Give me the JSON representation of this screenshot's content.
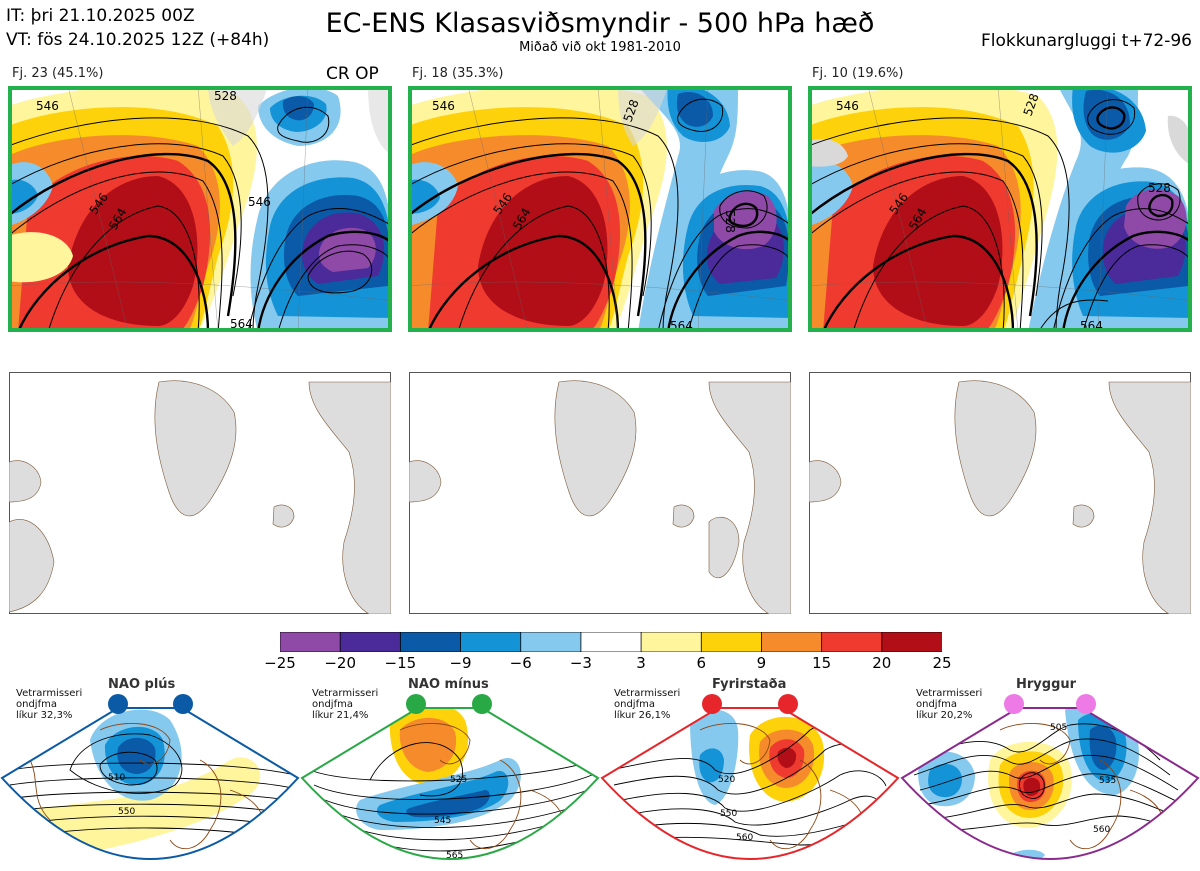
{
  "header": {
    "init_time": "IT: þri 21.10.2025 00Z",
    "valid_time": "VT: fös 24.10.2025 12Z  (+84h)",
    "title": "EC-ENS Klasasviðsmyndir - 500 hPa hæð",
    "subtitle": "Miðað við okt 1981-2010",
    "window": "Flokkunargluggi t+72-96"
  },
  "clusters": [
    {
      "label": "Fj. 23 (45.1%)",
      "tag": "CR OP",
      "border": "#22b14c",
      "contours": {
        "a": "546",
        "b": "546",
        "c": "564",
        "d": "564",
        "e": "528",
        "f": "546"
      }
    },
    {
      "label": "Fj. 18 (35.3%)",
      "tag": "",
      "border": "#22b14c",
      "contours": {
        "a": "546",
        "b": "546",
        "c": "564",
        "d": "564",
        "e": "528",
        "f": "528"
      }
    },
    {
      "label": "Fj. 10 (19.6%)",
      "tag": "",
      "border": "#22b14c",
      "contours": {
        "a": "546",
        "b": "546",
        "c": "564",
        "d": "564",
        "e": "528",
        "f": "528"
      }
    }
  ],
  "colorbar": {
    "colors": [
      "#8e4aa6",
      "#4b2a9a",
      "#0a5aa8",
      "#1493d7",
      "#86c9ee",
      "#ffffff",
      "#fff59d",
      "#fdd20a",
      "#f68b2c",
      "#ee3a2f",
      "#b10e18"
    ],
    "ticks": [
      "−25",
      "−20",
      "−15",
      "−9",
      "−6",
      "−3",
      "3",
      "6",
      "9",
      "15",
      "20",
      "25"
    ]
  },
  "regimes": [
    {
      "name": "NAO plús",
      "line1": "Vetrarmisseri",
      "line2": "ondjfma",
      "line3": "líkur 32,3%",
      "color": "#0b5aa5",
      "dot": "#0b5aa5",
      "c1": "510",
      "c2": "550"
    },
    {
      "name": "NAO mínus",
      "line1": "Vetrarmisseri",
      "line2": "ondjfma",
      "line3": "líkur 21,4%",
      "color": "#29a846",
      "dot": "#29a846",
      "c1": "525",
      "c2": "545",
      "c3": "565"
    },
    {
      "name": "Fyrirstaða",
      "line1": "Vetrarmisseri",
      "line2": "ondjfma",
      "line3": "líkur 26,1%",
      "color": "#e6262a",
      "dot": "#e6262a",
      "c1": "520",
      "c2": "550",
      "c3": "560"
    },
    {
      "name": "Hryggur",
      "line1": "Vetrarmisseri",
      "line2": "ondjfma",
      "line3": "líkur 20,2%",
      "color": "#8a2a8c",
      "dot": "#ee7ae6",
      "c1": "505",
      "c2": "535",
      "c3": "560"
    }
  ]
}
